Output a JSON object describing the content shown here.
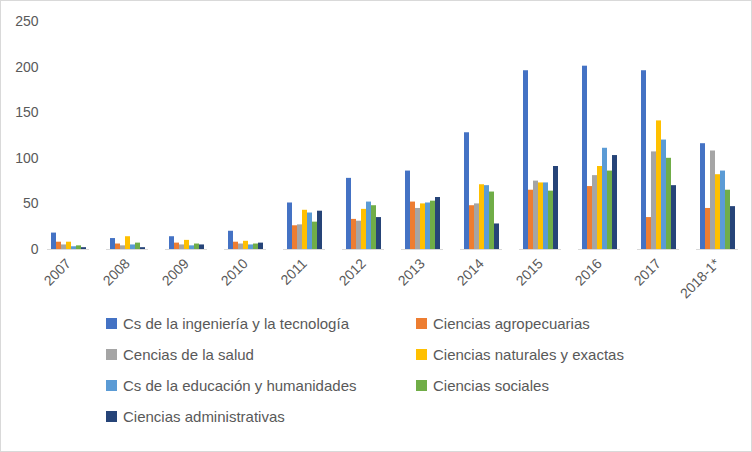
{
  "chart_data": {
    "type": "bar",
    "categories": [
      "2007",
      "2008",
      "2009",
      "2010",
      "2011",
      "2012",
      "2013",
      "2014",
      "2015",
      "2016",
      "2017",
      "2018-1*"
    ],
    "series": [
      {
        "name": "Cs de la ingeniería y la tecnología",
        "color": "#4472c4",
        "values": [
          18,
          12,
          14,
          20,
          51,
          78,
          86,
          128,
          196,
          201,
          196,
          116
        ]
      },
      {
        "name": "Ciencias agropecuarias",
        "color": "#ed7d31",
        "values": [
          8,
          6,
          7,
          8,
          26,
          33,
          52,
          48,
          65,
          69,
          35,
          45
        ]
      },
      {
        "name": "Cencias de la salud",
        "color": "#a5a5a5",
        "values": [
          5,
          4,
          5,
          6,
          27,
          31,
          45,
          50,
          75,
          81,
          107,
          108
        ]
      },
      {
        "name": "Ciencias naturales y exactas",
        "color": "#ffc000",
        "values": [
          8,
          14,
          10,
          9,
          43,
          44,
          50,
          71,
          73,
          91,
          141,
          82
        ]
      },
      {
        "name": "Cs de la educación y humanidades",
        "color": "#5b9bd5",
        "values": [
          3,
          5,
          4,
          5,
          40,
          52,
          51,
          70,
          73,
          111,
          120,
          86
        ]
      },
      {
        "name": "Ciencias sociales",
        "color": "#70ad47",
        "values": [
          4,
          7,
          6,
          6,
          30,
          48,
          53,
          63,
          64,
          86,
          100,
          65
        ]
      },
      {
        "name": "Ciencias administrativas",
        "color": "#264478",
        "values": [
          2,
          2,
          5,
          7,
          42,
          35,
          57,
          28,
          91,
          103,
          70,
          47
        ]
      }
    ],
    "ylim": [
      0,
      250
    ],
    "yticks": [
      0,
      50,
      100,
      150,
      200,
      250
    ],
    "grid": false,
    "legend": "bottom"
  }
}
